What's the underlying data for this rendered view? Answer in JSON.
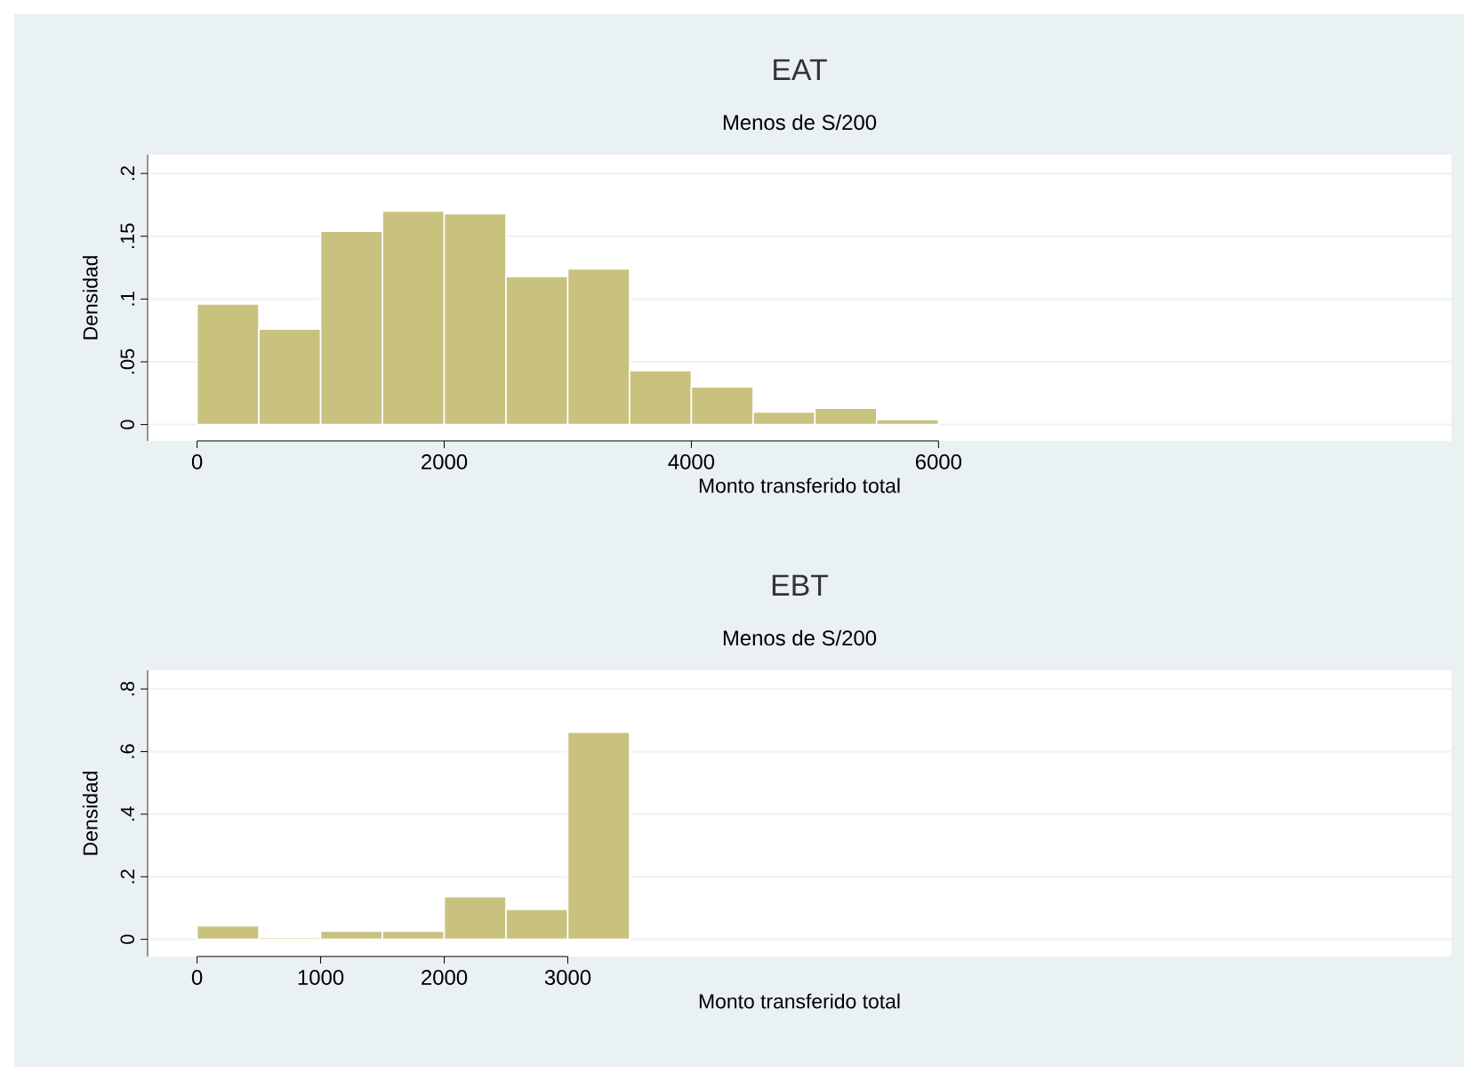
{
  "chart_data": [
    {
      "type": "histogram",
      "title": "EAT",
      "subtitle": "Menos de S/200",
      "xlabel": "Monto transferido total",
      "ylabel": "Densidad",
      "color": "#c9c27f",
      "bins": [
        0,
        500,
        1000,
        1500,
        2000,
        2500,
        3000,
        3500,
        4000,
        4500,
        5000,
        5500,
        6000
      ],
      "values": [
        0.096,
        0.076,
        0.154,
        0.17,
        0.168,
        0.118,
        0.124,
        0.043,
        0.03,
        0.01,
        0.013,
        0.004
      ],
      "xlim": [
        -400,
        10150
      ],
      "ylim": [
        -0.013,
        0.215
      ],
      "xticks": [
        0,
        2000,
        4000,
        6000
      ],
      "yticks": [
        0,
        {
          "value": 0.05,
          "label": ".05"
        },
        {
          "value": 0.1,
          "label": ".1"
        },
        {
          "value": 0.15,
          "label": ".15"
        },
        {
          "value": 0.2,
          "label": ".2"
        }
      ],
      "grid": "y"
    },
    {
      "type": "histogram",
      "title": "EBT",
      "subtitle": "Menos de S/200",
      "xlabel": "Monto transferido total",
      "ylabel": "Densidad",
      "color": "#c9c27f",
      "bins": [
        0,
        500,
        1000,
        1500,
        2000,
        2500,
        3000,
        3500
      ],
      "values": [
        0.043,
        0.006,
        0.026,
        0.026,
        0.136,
        0.096,
        0.662
      ],
      "xlim": [
        -400,
        10150
      ],
      "ylim": [
        -0.055,
        0.86
      ],
      "xticks": [
        0,
        1000,
        2000,
        3000
      ],
      "yticks": [
        0,
        {
          "value": 0.2,
          "label": ".2"
        },
        {
          "value": 0.4,
          "label": ".4"
        },
        {
          "value": 0.6,
          "label": ".6"
        },
        {
          "value": 0.8,
          "label": ".8"
        }
      ],
      "grid": "y"
    }
  ]
}
